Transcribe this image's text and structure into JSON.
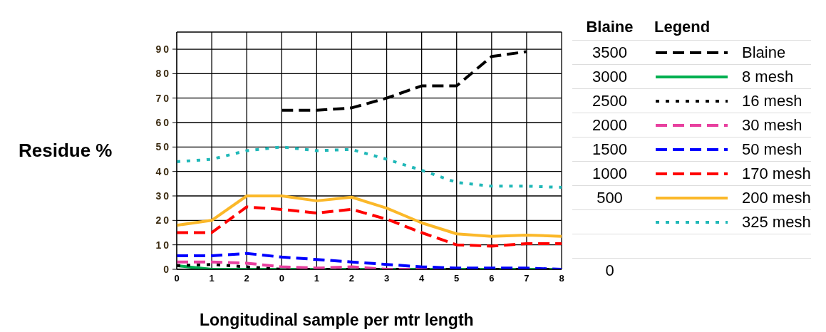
{
  "chart_data": {
    "type": "line",
    "xlabel": "Longitudinal sample per mtr length",
    "ylabel": "Residue %",
    "legend_title": "Legend",
    "legend": "right",
    "grid": true,
    "marker": "none",
    "categories": [
      "0",
      "1",
      "2",
      "0",
      "1",
      "2",
      "3",
      "4",
      "5",
      "6",
      "7",
      "8"
    ],
    "ylim": [
      0,
      97
    ],
    "yticks": [
      0,
      10,
      20,
      30,
      40,
      50,
      60,
      70,
      80,
      90
    ],
    "series": [
      {
        "name": "Blaine",
        "color": "#000000",
        "line_style": "dashed",
        "values": [
          null,
          null,
          null,
          65,
          65,
          66,
          70,
          75,
          75,
          87,
          89,
          null
        ]
      },
      {
        "name": "8 mesh",
        "color": "#00b050",
        "line_style": "solid",
        "values": [
          1.5,
          0,
          0,
          0,
          0,
          0,
          0,
          0,
          0,
          0,
          0,
          0
        ]
      },
      {
        "name": "16 mesh",
        "color": "#000000",
        "line_style": "dotted",
        "values": [
          1.5,
          2,
          1,
          0,
          0,
          0,
          0,
          0,
          0,
          0,
          0,
          0
        ]
      },
      {
        "name": "30 mesh",
        "color": "#e8409f",
        "line_style": "dashed",
        "values": [
          3,
          3,
          2.5,
          1,
          0.5,
          1,
          0,
          0,
          0,
          null,
          null,
          null
        ]
      },
      {
        "name": "50 mesh",
        "color": "#0000ff",
        "line_style": "dashed",
        "values": [
          5.5,
          5.5,
          6.5,
          5,
          4,
          3,
          2,
          1,
          0.5,
          0.5,
          0.5,
          0
        ]
      },
      {
        "name": "170 mesh",
        "color": "#ff0000",
        "line_style": "dashed",
        "values": [
          15,
          15,
          25.5,
          24.5,
          23,
          24.5,
          20.5,
          15,
          10,
          9.5,
          10.5,
          10.5
        ]
      },
      {
        "name": "200 mesh",
        "color": "#fbb829",
        "line_style": "solid",
        "values": [
          18,
          20,
          30,
          30,
          28,
          29.5,
          25,
          19,
          14.5,
          13.5,
          14,
          13.5
        ]
      },
      {
        "name": "325 mesh",
        "color": "#20b8b8",
        "line_style": "dotted",
        "values": [
          44,
          45,
          48.5,
          50,
          48.5,
          49,
          45,
          40.5,
          35.5,
          34,
          34,
          33.5
        ]
      }
    ],
    "annotations": [
      "Blaine",
      "3500",
      "3000",
      "2500",
      "2000",
      "1500",
      "1000",
      "500",
      "0"
    ]
  }
}
